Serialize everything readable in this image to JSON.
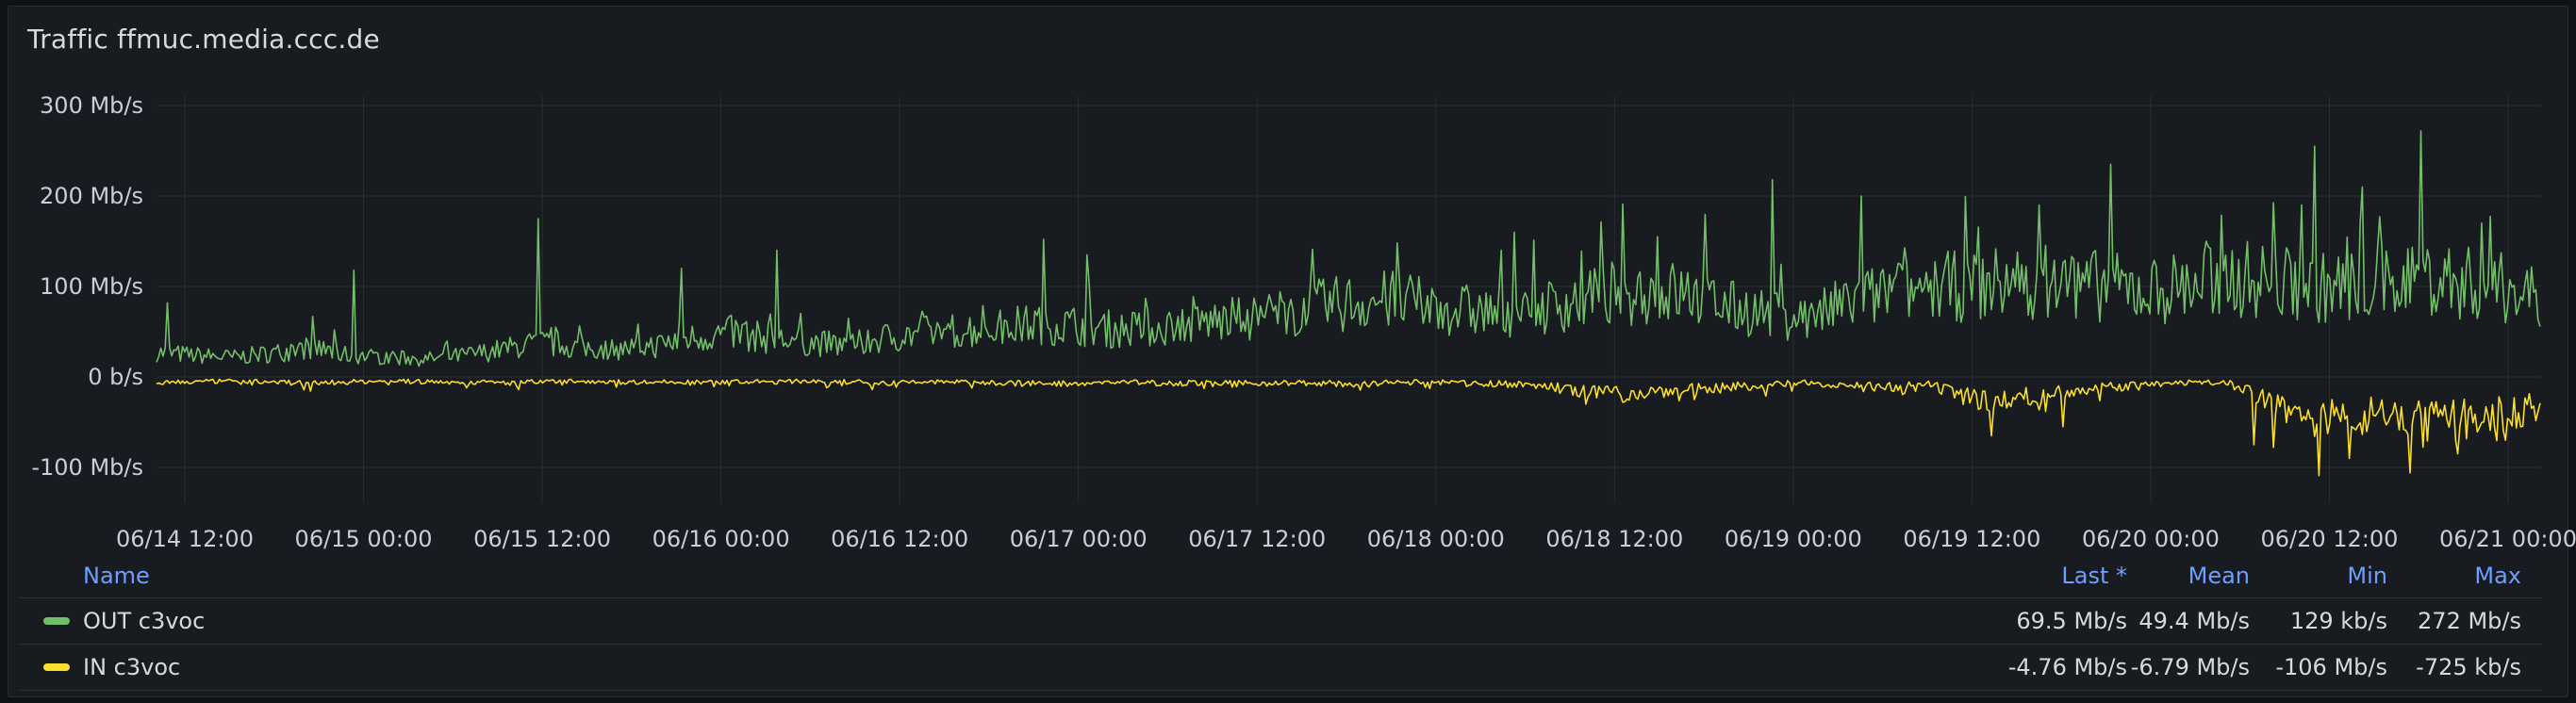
{
  "panel": {
    "title": "Traffic ffmuc.media.ccc.de"
  },
  "chart_data": {
    "type": "line",
    "title": "Traffic ffmuc.media.ccc.de",
    "y_unit": "Mb/s",
    "ylim": [
      -160,
      310
    ],
    "y_ticks": [
      {
        "value": 300,
        "label": "300 Mb/s"
      },
      {
        "value": 200,
        "label": "200 Mb/s"
      },
      {
        "value": 100,
        "label": "100 Mb/s"
      },
      {
        "value": 0,
        "label": "0 b/s"
      },
      {
        "value": -100,
        "label": "-100 Mb/s"
      }
    ],
    "x_range": [
      "2024-06-14T08:30",
      "2024-06-21T14:30"
    ],
    "x_ticks": [
      "06/14 12:00",
      "06/15 00:00",
      "06/15 12:00",
      "06/16 00:00",
      "06/16 12:00",
      "06/17 00:00",
      "06/17 12:00",
      "06/18 00:00",
      "06/18 12:00",
      "06/19 00:00",
      "06/19 12:00",
      "06/20 00:00",
      "06/20 12:00",
      "06/21 00:00"
    ],
    "grid": true,
    "legend_position": "bottom",
    "series": [
      {
        "name": "OUT c3voc",
        "color": "#73bf69",
        "values_note_free": true,
        "baseline": [
          25,
          22,
          20,
          24,
          30,
          22,
          20,
          18,
          22,
          28,
          35,
          30,
          28,
          32,
          40,
          45,
          38,
          35,
          32,
          40,
          45,
          48,
          50,
          55,
          52,
          48,
          50,
          55,
          58,
          62,
          70,
          75,
          78,
          72,
          68,
          65,
          70,
          78,
          85,
          88,
          82,
          70,
          65,
          60,
          75,
          85,
          90,
          92,
          95,
          98,
          95,
          90,
          88,
          95,
          100,
          98,
          90,
          92,
          95,
          100,
          96,
          90,
          85
        ],
        "spikes": [
          {
            "t": 0.005,
            "v": 82
          },
          {
            "t": 0.083,
            "v": 118
          },
          {
            "t": 0.16,
            "v": 175
          },
          {
            "t": 0.22,
            "v": 120
          },
          {
            "t": 0.26,
            "v": 140
          },
          {
            "t": 0.372,
            "v": 152
          },
          {
            "t": 0.39,
            "v": 135
          },
          {
            "t": 0.57,
            "v": 160
          },
          {
            "t": 0.63,
            "v": 155
          },
          {
            "t": 0.678,
            "v": 218
          },
          {
            "t": 0.715,
            "v": 200
          },
          {
            "t": 0.79,
            "v": 190
          },
          {
            "t": 0.82,
            "v": 235
          },
          {
            "t": 0.86,
            "v": 150
          },
          {
            "t": 0.9,
            "v": 190
          },
          {
            "t": 0.905,
            "v": 255
          },
          {
            "t": 0.925,
            "v": 210
          },
          {
            "t": 0.95,
            "v": 272
          },
          {
            "t": 0.975,
            "v": 170
          }
        ],
        "last": "69.5 Mb/s",
        "mean": "49.4 Mb/s",
        "min": "129 kb/s",
        "max": "272 Mb/s"
      },
      {
        "name": "IN c3voc",
        "color": "#fade2a",
        "baseline": [
          -5,
          -5,
          -4,
          -5,
          -6,
          -5,
          -4,
          -5,
          -5,
          -6,
          -5,
          -4,
          -5,
          -5,
          -6,
          -5,
          -5,
          -4,
          -5,
          -6,
          -5,
          -5,
          -6,
          -7,
          -6,
          -5,
          -6,
          -6,
          -7,
          -6,
          -6,
          -7,
          -6,
          -5,
          -6,
          -7,
          -8,
          -15,
          -18,
          -14,
          -12,
          -10,
          -8,
          -6,
          -8,
          -10,
          -7,
          -20,
          -25,
          -18,
          -12,
          -10,
          -8,
          -5,
          -6,
          -25,
          -40,
          -45,
          -30,
          -50,
          -42,
          -38,
          -30
        ],
        "spikes": [
          {
            "t": 0.13,
            "v": -12
          },
          {
            "t": 0.3,
            "v": -14
          },
          {
            "t": 0.6,
            "v": -30
          },
          {
            "t": 0.645,
            "v": -25
          },
          {
            "t": 0.77,
            "v": -65
          },
          {
            "t": 0.8,
            "v": -55
          },
          {
            "t": 0.88,
            "v": -75
          },
          {
            "t": 0.92,
            "v": -90
          },
          {
            "t": 0.945,
            "v": -106
          },
          {
            "t": 0.965,
            "v": -85
          },
          {
            "t": 0.985,
            "v": -70
          }
        ],
        "last": "-4.76 Mb/s",
        "mean": "-6.79 Mb/s",
        "min": "-106 Mb/s",
        "max": "-725 kb/s"
      }
    ]
  },
  "legend": {
    "headers": {
      "name": "Name",
      "last": "Last *",
      "mean": "Mean",
      "min": "Min",
      "max": "Max"
    },
    "rows": [
      {
        "name": "OUT c3voc",
        "color": "#73bf69",
        "last": "69.5 Mb/s",
        "mean": "49.4 Mb/s",
        "min": "129 kb/s",
        "max": "272 Mb/s"
      },
      {
        "name": "IN c3voc",
        "color": "#fade2a",
        "last": "-4.76 Mb/s",
        "mean": "-6.79 Mb/s",
        "min": "-106 Mb/s",
        "max": "-725 kb/s"
      }
    ]
  }
}
